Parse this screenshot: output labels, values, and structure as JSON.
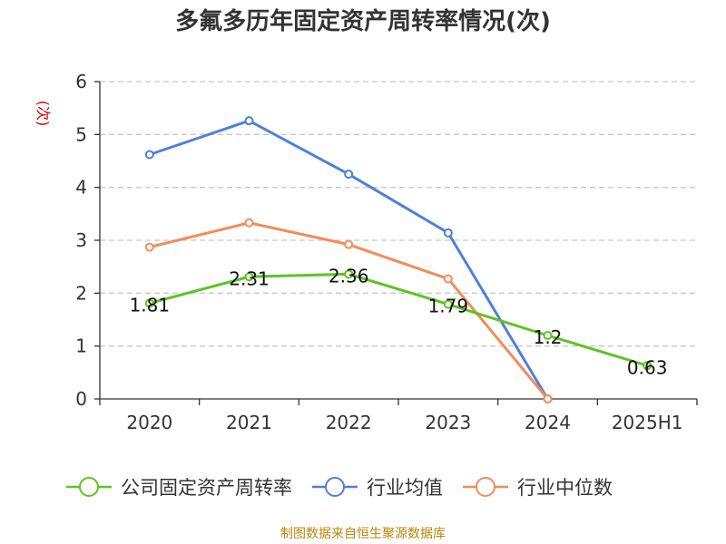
{
  "chart_data": {
    "type": "line",
    "title": "多氟多历年固定资产周转率情况(次)",
    "ylabel": "(次)",
    "ylim": [
      0,
      6
    ],
    "yticks": [
      "0",
      "1",
      "2",
      "3",
      "4",
      "5",
      "6"
    ],
    "grid": true,
    "legend_position": "bottom",
    "categories": [
      "2020",
      "2021",
      "2022",
      "2023",
      "2024",
      "2025H1"
    ],
    "series": [
      {
        "name": "公司固定资产周转率",
        "color": "#5bc422",
        "values": [
          1.81,
          2.31,
          2.36,
          1.79,
          1.2,
          0.63
        ],
        "labels": [
          "1.81",
          "2.31",
          "2.36",
          "1.79",
          "1.2",
          "0.63"
        ]
      },
      {
        "name": "行业均值",
        "color": "#4f7fd9",
        "values": [
          4.62,
          5.26,
          4.25,
          3.14,
          0,
          null
        ]
      },
      {
        "name": "行业中位数",
        "color": "#f48b5a",
        "values": [
          2.87,
          3.33,
          2.92,
          2.27,
          0,
          null
        ]
      }
    ]
  },
  "source_note": "制图数据来自恒生聚源数据库"
}
